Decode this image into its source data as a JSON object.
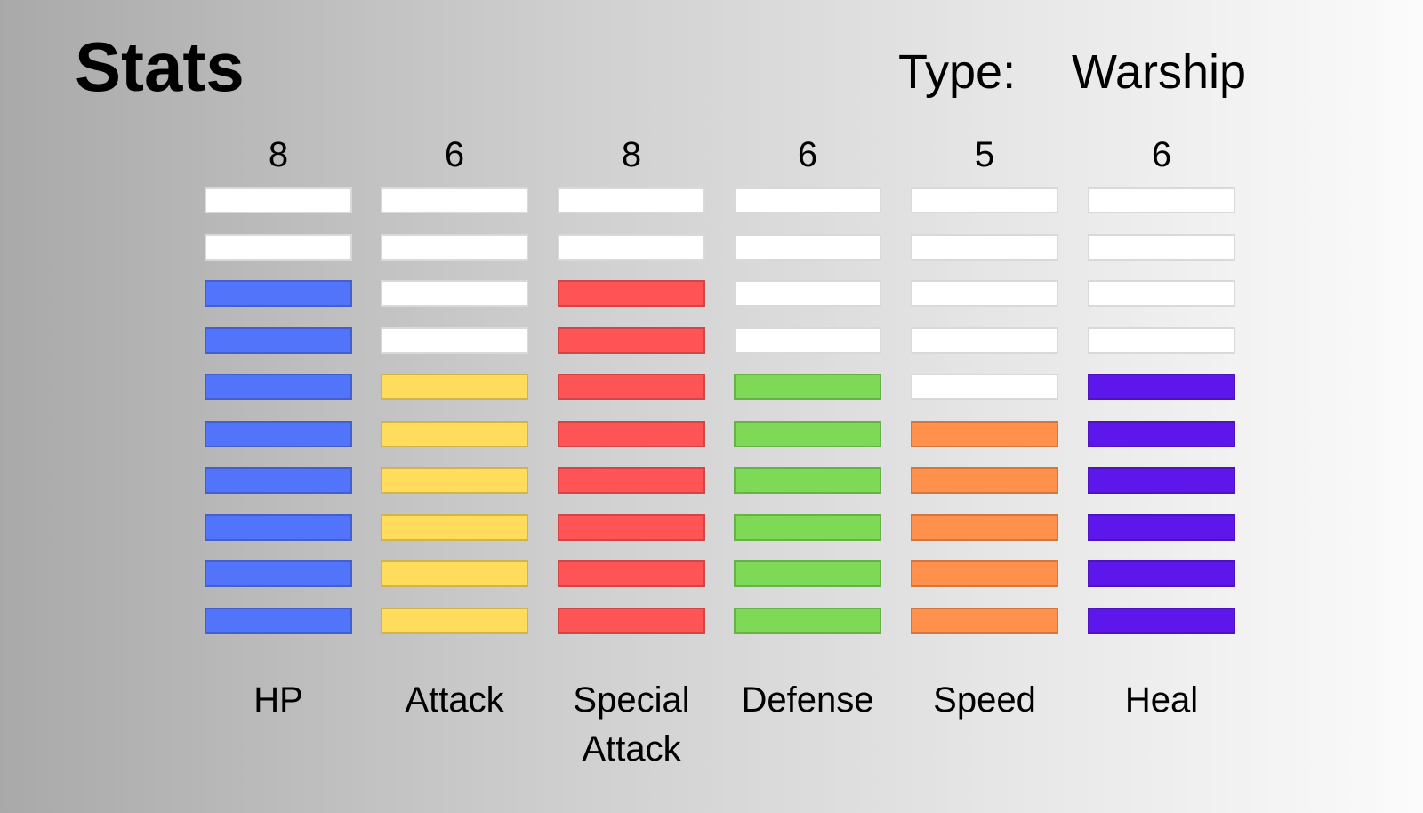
{
  "header": {
    "title": "Stats",
    "type_label": "Type:",
    "type_value": "Warship"
  },
  "chart_data": {
    "type": "bar",
    "max_blocks": 10,
    "categories": [
      "HP",
      "Attack",
      "Special Attack",
      "Defense",
      "Speed",
      "Heal"
    ],
    "category_lines": [
      [
        "HP"
      ],
      [
        "Attack"
      ],
      [
        "Special",
        "Attack"
      ],
      [
        "Defense"
      ],
      [
        "Speed"
      ],
      [
        "Heal"
      ]
    ],
    "values": [
      8,
      6,
      8,
      6,
      5,
      6
    ],
    "colors": [
      "#5274fb",
      "#ffdc5b",
      "#ff5455",
      "#7ed957",
      "#ff914d",
      "#5e17eb"
    ],
    "empty_color": "#ffffff"
  }
}
